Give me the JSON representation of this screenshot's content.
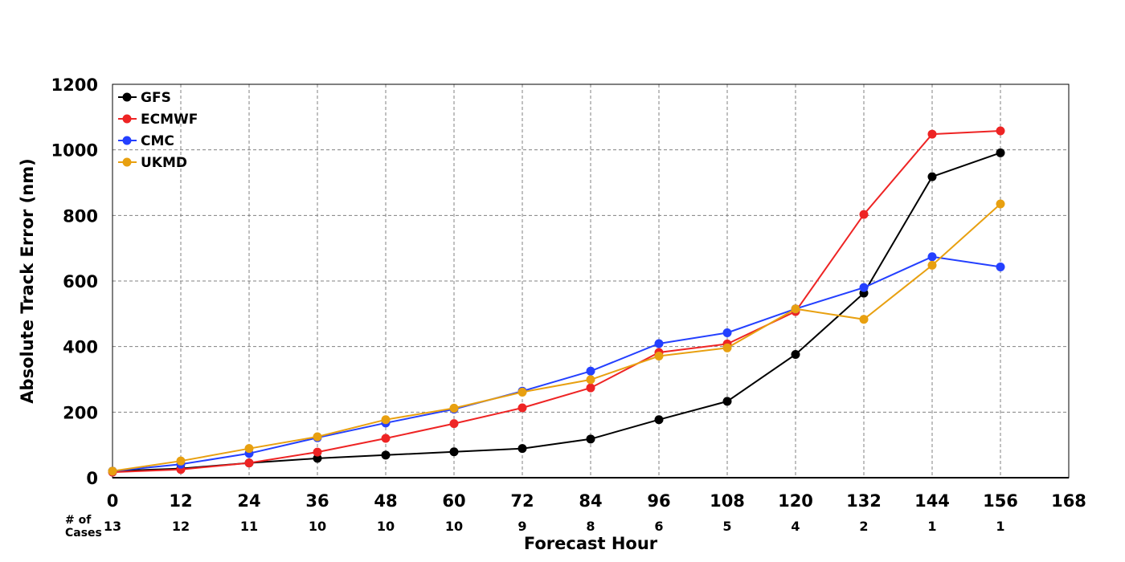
{
  "chart_data": {
    "type": "line",
    "title": "",
    "xlabel": "Forecast Hour",
    "ylabel": "Absolute Track Error (nm)",
    "xlim": [
      0,
      168
    ],
    "ylim": [
      0,
      1200
    ],
    "x_ticks": [
      0,
      12,
      24,
      36,
      48,
      60,
      72,
      84,
      96,
      108,
      120,
      132,
      144,
      156,
      168
    ],
    "y_ticks": [
      0,
      200,
      400,
      600,
      800,
      1000,
      1200
    ],
    "grid": true,
    "legend_position": "top-left",
    "cases_label": "# of Cases",
    "cases_label_lines": [
      "# of",
      "Cases"
    ],
    "cases": [
      {
        "x": 0,
        "count": "13"
      },
      {
        "x": 12,
        "count": "12"
      },
      {
        "x": 24,
        "count": "11"
      },
      {
        "x": 36,
        "count": "10"
      },
      {
        "x": 48,
        "count": "10"
      },
      {
        "x": 60,
        "count": "10"
      },
      {
        "x": 72,
        "count": "9"
      },
      {
        "x": 84,
        "count": "8"
      },
      {
        "x": 96,
        "count": "6"
      },
      {
        "x": 108,
        "count": "5"
      },
      {
        "x": 120,
        "count": "4"
      },
      {
        "x": 132,
        "count": "2"
      },
      {
        "x": 144,
        "count": "1"
      },
      {
        "x": 156,
        "count": "1"
      }
    ],
    "x": [
      0,
      12,
      24,
      36,
      48,
      60,
      72,
      84,
      96,
      108,
      120,
      132,
      144,
      156
    ],
    "series": [
      {
        "name": "GFS",
        "color": "#000000",
        "values": [
          20,
          28,
          45,
          59,
          69,
          79,
          89,
          118,
          177,
          233,
          376,
          563,
          918,
          991
        ]
      },
      {
        "name": "ECMWF",
        "color": "#ee2424",
        "values": [
          17,
          25,
          45,
          78,
          120,
          165,
          213,
          274,
          382,
          408,
          507,
          803,
          1048,
          1058
        ]
      },
      {
        "name": "CMC",
        "color": "#2440ff",
        "values": [
          20,
          41,
          74,
          122,
          167,
          209,
          264,
          325,
          409,
          442,
          515,
          580,
          674,
          643
        ]
      },
      {
        "name": "UKMD",
        "color": "#e8a010",
        "values": [
          20,
          51,
          89,
          125,
          177,
          212,
          261,
          299,
          371,
          396,
          515,
          483,
          648,
          835
        ]
      }
    ]
  }
}
